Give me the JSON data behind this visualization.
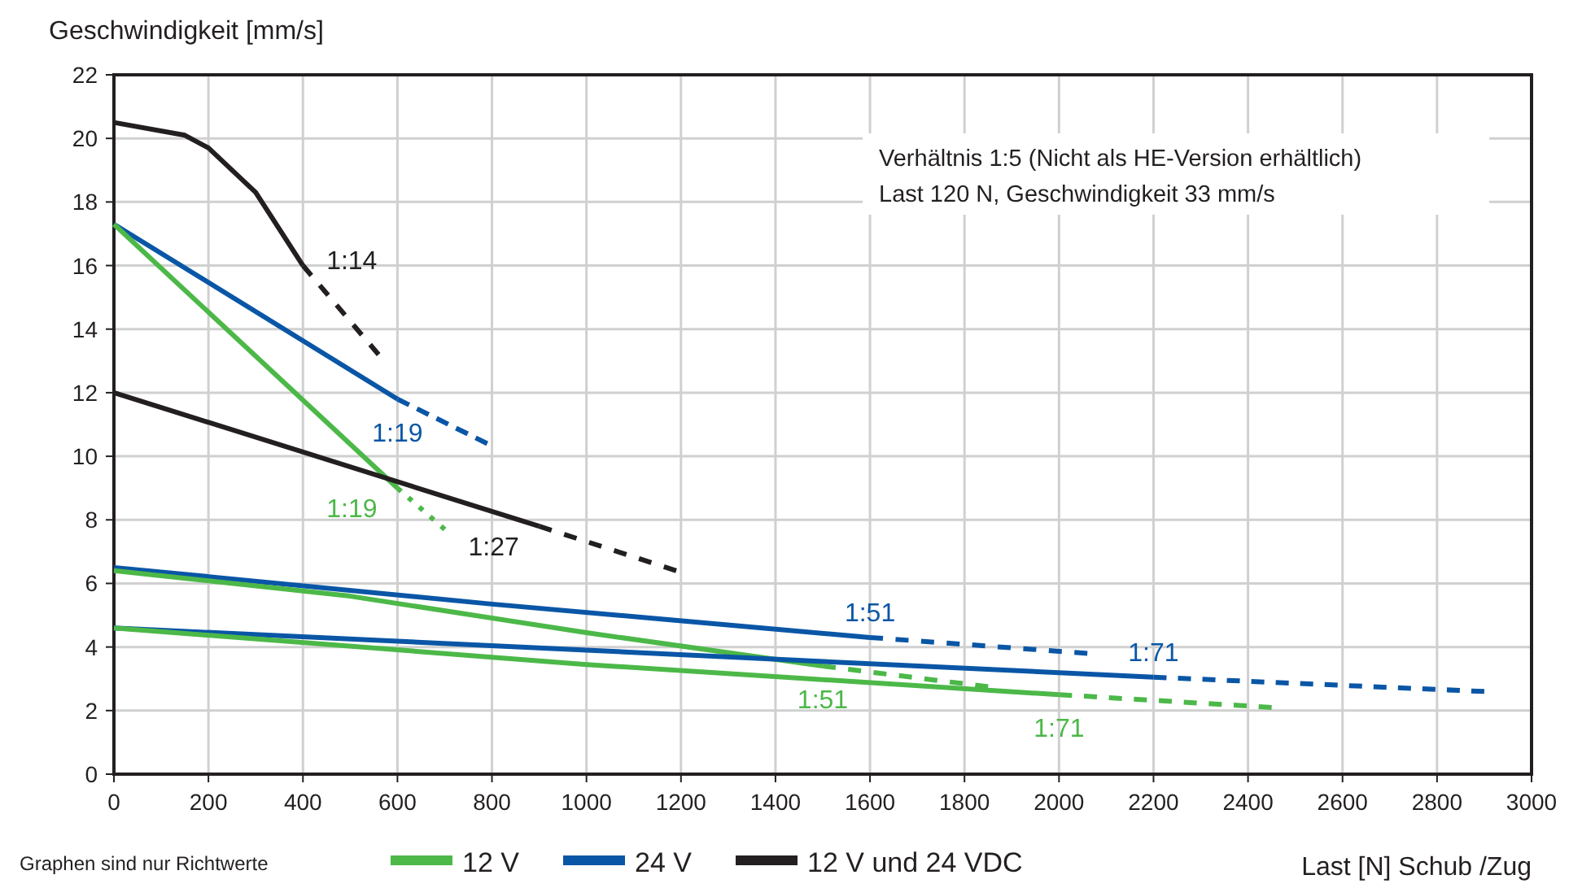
{
  "chart_data": {
    "type": "line",
    "xlabel": "Last [N] Schub /Zug",
    "ylabel": "Geschwindigkeit [mm/s]",
    "xlim": [
      0,
      3000
    ],
    "xticks": [
      0,
      200,
      400,
      600,
      800,
      1000,
      1200,
      1400,
      1600,
      1800,
      2000,
      2200,
      2400,
      2600,
      2800,
      3000
    ],
    "ylim": [
      0,
      22
    ],
    "yticks": [
      0,
      2,
      4,
      6,
      8,
      10,
      12,
      14,
      16,
      18,
      20,
      22
    ],
    "grid": true,
    "legend": "bottom",
    "marker": "none",
    "series": [
      {
        "name": "12 V und 24 VDC",
        "color": "#231f20",
        "x": [
          0,
          150,
          200,
          300,
          400
        ],
        "values": [
          20.5,
          20.1,
          19.7,
          18.3,
          16
        ]
      },
      {
        "color": "#231f20",
        "line_style": "dashed",
        "x": [
          400,
          560
        ],
        "values": [
          16,
          13.2
        ]
      },
      {
        "name": "24 V",
        "color": "#0a56a6",
        "x": [
          0,
          600
        ],
        "values": [
          17.3,
          11.8
        ]
      },
      {
        "color": "#0a56a6",
        "line_style": "dashed",
        "x": [
          600,
          790
        ],
        "values": [
          11.8,
          10.4
        ]
      },
      {
        "name": "12 V",
        "color": "#4cb848",
        "x": [
          0,
          600
        ],
        "values": [
          17.3,
          9
        ]
      },
      {
        "color": "#4cb848",
        "line_style": "dotted",
        "x": [
          600,
          700
        ],
        "values": [
          9,
          7.7
        ]
      },
      {
        "color": "#231f20",
        "x": [
          0,
          900
        ],
        "values": [
          12,
          7.8
        ]
      },
      {
        "color": "#231f20",
        "line_style": "dashed",
        "x": [
          900,
          1190
        ],
        "values": [
          7.8,
          6.4
        ]
      },
      {
        "color": "#0a56a6",
        "x": [
          0,
          800,
          1600
        ],
        "values": [
          6.5,
          5.35,
          4.3
        ]
      },
      {
        "color": "#0a56a6",
        "line_style": "dashed",
        "x": [
          1600,
          2060
        ],
        "values": [
          4.3,
          3.8
        ]
      },
      {
        "color": "#4cb848",
        "x": [
          0,
          500,
          1000,
          1500
        ],
        "values": [
          6.4,
          5.6,
          4.45,
          3.4
        ]
      },
      {
        "color": "#4cb848",
        "line_style": "dashed",
        "x": [
          1500,
          1850
        ],
        "values": [
          3.4,
          2.75
        ]
      },
      {
        "color": "#0a56a6",
        "x": [
          0,
          1000,
          2200
        ],
        "values": [
          4.6,
          3.9,
          3.05
        ]
      },
      {
        "color": "#0a56a6",
        "line_style": "dashed",
        "x": [
          2200,
          2900
        ],
        "values": [
          3.05,
          2.6
        ]
      },
      {
        "color": "#4cb848",
        "x": [
          0,
          1000,
          2000
        ],
        "values": [
          4.6,
          3.45,
          2.5
        ]
      },
      {
        "color": "#4cb848",
        "line_style": "dashed",
        "x": [
          2000,
          2450
        ],
        "values": [
          2.5,
          2.1
        ]
      }
    ],
    "annotations": [
      "Verhältnis 1:5 (Nicht als HE-Version erhältlich)",
      "Last 120 N, Geschwindigkeit 33 mm/s",
      "Graphen sind nur Richtwerte",
      {
        "text": "1:14",
        "x": 400,
        "y": 16
      },
      {
        "text": "1:19",
        "x": 600,
        "y": 11.8
      },
      {
        "text": "1:19",
        "x": 600,
        "y": 9
      },
      {
        "text": "1:27",
        "x": 900,
        "y": 7.8
      },
      {
        "text": "1:51",
        "x": 1600,
        "y": 4.3
      },
      {
        "text": "1:51",
        "x": 1500,
        "y": 3.4
      },
      {
        "text": "1:71",
        "x": 2200,
        "y": 3.05
      },
      {
        "text": "1:71",
        "x": 2000,
        "y": 2.5
      }
    ]
  }
}
